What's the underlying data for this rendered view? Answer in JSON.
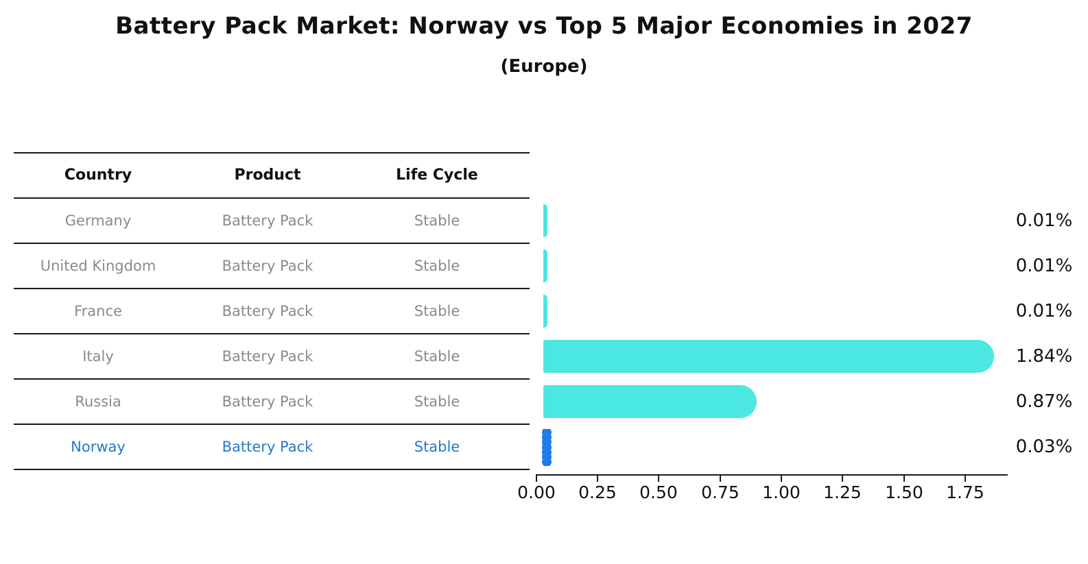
{
  "title": "Battery Pack Market: Norway vs Top 5 Major Economies in 2027",
  "subtitle": "(Europe)",
  "table": {
    "headers": {
      "country": "Country",
      "product": "Product",
      "life_cycle": "Life Cycle"
    },
    "rows": [
      {
        "country": "Germany",
        "product": "Battery Pack",
        "life_cycle": "Stable",
        "highlight": false
      },
      {
        "country": "United Kingdom",
        "product": "Battery Pack",
        "life_cycle": "Stable",
        "highlight": false
      },
      {
        "country": "France",
        "product": "Battery Pack",
        "life_cycle": "Stable",
        "highlight": false
      },
      {
        "country": "Italy",
        "product": "Battery Pack",
        "life_cycle": "Stable",
        "highlight": false
      },
      {
        "country": "Russia",
        "product": "Battery Pack",
        "life_cycle": "Stable",
        "highlight": false
      },
      {
        "country": "Norway",
        "product": "Battery Pack",
        "life_cycle": "Stable",
        "highlight": true
      }
    ]
  },
  "chart_data": {
    "type": "bar",
    "orientation": "horizontal",
    "title": "Battery Pack Market: Norway vs Top 5 Major Economies in 2027",
    "subtitle": "(Europe)",
    "categories": [
      "Germany",
      "United Kingdom",
      "France",
      "Italy",
      "Russia",
      "Norway"
    ],
    "values": [
      0.01,
      0.01,
      0.01,
      1.84,
      0.87,
      0.03
    ],
    "value_labels": [
      "0.01%",
      "0.01%",
      "0.01%",
      "1.84%",
      "0.87%",
      "0.03%"
    ],
    "x_ticks": [
      "0.00",
      "0.25",
      "0.50",
      "0.75",
      "1.00",
      "1.25",
      "1.50",
      "1.75"
    ],
    "xlim": [
      0,
      1.93
    ],
    "grid": false,
    "legend": "none",
    "bar_color": "#4ae8e0",
    "highlight_bar_color": "#1e7ce8",
    "highlight_category": "Norway"
  },
  "colors": {
    "background": "#ffffff",
    "bar_cyan": "#4ae8e0",
    "bar_blue": "#1e7ce8",
    "highlight_text": "#2878c8",
    "muted_text": "#8a8a8a",
    "text": "#111111",
    "line": "#1a1a1a"
  }
}
